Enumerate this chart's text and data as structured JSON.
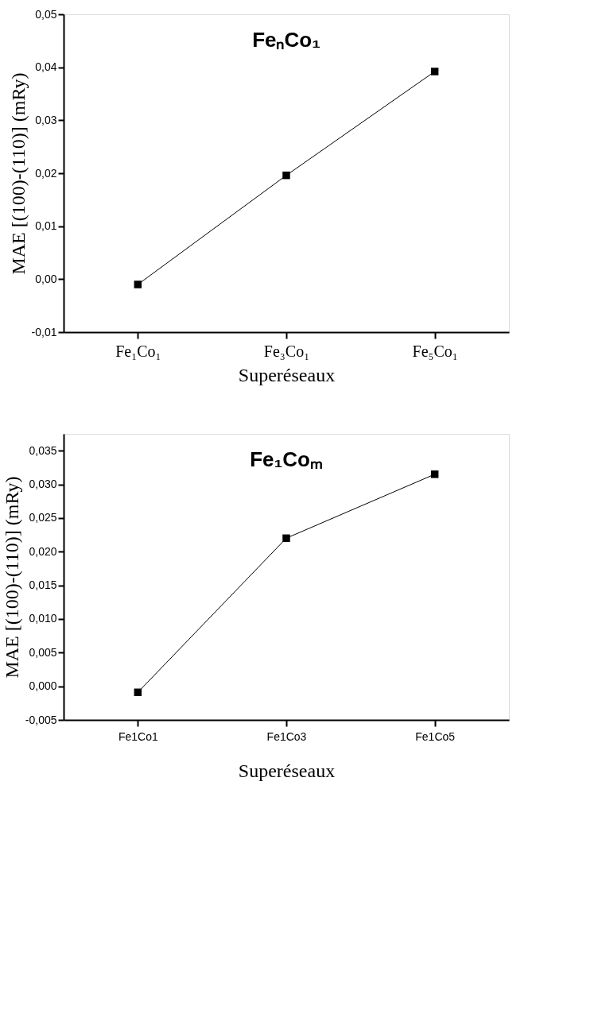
{
  "chart_data": [
    {
      "type": "line",
      "title": "FeₙCo₁",
      "xlabel": "Superéseaux",
      "ylabel": "MAE [(100)-(110)] (mRy)",
      "categories": [
        "Fe₁Co₁",
        "Fe₃Co₁",
        "Fe₅Co₁"
      ],
      "series": [
        {
          "color": "#000000",
          "values": [
            -0.001,
            0.0196,
            0.0392
          ]
        }
      ],
      "ylim": [
        -0.01,
        0.05
      ],
      "yticks": [
        {
          "value": -0.01,
          "label": "-0,01"
        },
        {
          "value": 0.0,
          "label": "0,00"
        },
        {
          "value": 0.01,
          "label": "0,01"
        },
        {
          "value": 0.02,
          "label": "0,02"
        },
        {
          "value": 0.03,
          "label": "0,03"
        },
        {
          "value": 0.04,
          "label": "0,04"
        },
        {
          "value": 0.05,
          "label": "0,05"
        }
      ],
      "marker": "square",
      "line_style": "solid",
      "grid": false
    },
    {
      "type": "line",
      "title": "Fe₁Coₘ",
      "xlabel": "Superéseaux",
      "ylabel": "MAE [(100)-(110)] (mRy)",
      "categories": [
        "Fe1Co1",
        "Fe1Co3",
        "Fe1Co5"
      ],
      "series": [
        {
          "color": "#000000",
          "values": [
            -0.0009,
            0.022,
            0.0315
          ]
        }
      ],
      "ylim": [
        -0.005,
        0.0375
      ],
      "yticks": [
        {
          "value": -0.005,
          "label": "-0,005"
        },
        {
          "value": 0.0,
          "label": "0,000"
        },
        {
          "value": 0.005,
          "label": "0,005"
        },
        {
          "value": 0.01,
          "label": "0,010"
        },
        {
          "value": 0.015,
          "label": "0,015"
        },
        {
          "value": 0.02,
          "label": "0,020"
        },
        {
          "value": 0.025,
          "label": "0,025"
        },
        {
          "value": 0.03,
          "label": "0,030"
        },
        {
          "value": 0.035,
          "label": "0,035"
        }
      ],
      "marker": "square",
      "line_style": "solid",
      "grid": false
    }
  ]
}
